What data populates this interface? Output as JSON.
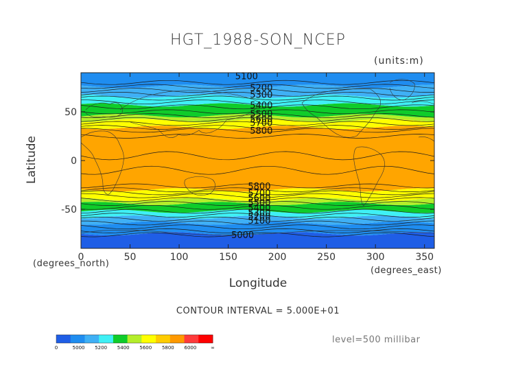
{
  "title": "HGT_1988-SON_NCEP",
  "units": "(units:m)",
  "contour_interval": "CONTOUR INTERVAL = 5.000E+01",
  "level": "level=500 millibar",
  "chart_data": {
    "type": "heatmap",
    "title": "HGT_1988-SON_NCEP",
    "xlabel": "Longitude",
    "ylabel": "Latitude",
    "x_unit": "(degrees_east)",
    "y_unit": "(degrees_north)",
    "xlim": [
      0,
      360
    ],
    "ylim": [
      -90,
      90
    ],
    "x_ticks": [
      "0",
      "50",
      "100",
      "150",
      "200",
      "250",
      "300",
      "350"
    ],
    "y_ticks": [
      "50",
      "0",
      "-50"
    ],
    "colorbar": {
      "levels": [
        "0",
        "5000",
        "5200",
        "5400",
        "5600",
        "5800",
        "6000",
        "∞"
      ],
      "colors": [
        "#1f5ee6",
        "#1f8df0",
        "#3fb0f5",
        "#3ff0f5",
        "#0fcc2a",
        "#b4ee2a",
        "#ffff00",
        "#ffcc00",
        "#ff9900",
        "#ff3b3b",
        "#ff0000"
      ]
    },
    "bands": [
      {
        "lat": [
          -90,
          -75
        ],
        "color": "#1f5ee6"
      },
      {
        "lat": [
          -75,
          -64
        ],
        "color": "#1f8df0"
      },
      {
        "lat": [
          -64,
          -58
        ],
        "color": "#3fb0f5"
      },
      {
        "lat": [
          -58,
          -52
        ],
        "color": "#3ff0f5"
      },
      {
        "lat": [
          -52,
          -44
        ],
        "color": "#0fcc2a"
      },
      {
        "lat": [
          -44,
          -40
        ],
        "color": "#b4ee2a"
      },
      {
        "lat": [
          -40,
          -30
        ],
        "color": "#ffff00"
      },
      {
        "lat": [
          -30,
          34
        ],
        "color": "#ffa500"
      },
      {
        "lat": [
          34,
          41
        ],
        "color": "#ffff00"
      },
      {
        "lat": [
          41,
          46
        ],
        "color": "#b4ee2a"
      },
      {
        "lat": [
          46,
          57
        ],
        "color": "#0fcc2a"
      },
      {
        "lat": [
          57,
          66
        ],
        "color": "#3ff0f5"
      },
      {
        "lat": [
          66,
          76
        ],
        "color": "#3fb0f5"
      },
      {
        "lat": [
          76,
          90
        ],
        "color": "#1f8df0"
      }
    ],
    "contour_labels": [
      {
        "text": "5100",
        "lon": 262,
        "lat": 87
      },
      {
        "text": "5200",
        "lon": 277,
        "lat": 75
      },
      {
        "text": "5300",
        "lon": 277,
        "lat": 68
      },
      {
        "text": "5400",
        "lon": 277,
        "lat": 57
      },
      {
        "text": "5500",
        "lon": 277,
        "lat": 48
      },
      {
        "text": "5600",
        "lon": 277,
        "lat": 43
      },
      {
        "text": "5700",
        "lon": 277,
        "lat": 39
      },
      {
        "text": "5800",
        "lon": 277,
        "lat": 31
      },
      {
        "text": "5800",
        "lon": 275,
        "lat": -26
      },
      {
        "text": "5700",
        "lon": 275,
        "lat": -33
      },
      {
        "text": "5600",
        "lon": 275,
        "lat": -38
      },
      {
        "text": "5500",
        "lon": 275,
        "lat": -43
      },
      {
        "text": "5400",
        "lon": 275,
        "lat": -48
      },
      {
        "text": "5300",
        "lon": 275,
        "lat": -53
      },
      {
        "text": "5200",
        "lon": 275,
        "lat": -57
      },
      {
        "text": "5100",
        "lon": 275,
        "lat": -61
      },
      {
        "text": "5000",
        "lon": 258,
        "lat": -76
      }
    ]
  }
}
